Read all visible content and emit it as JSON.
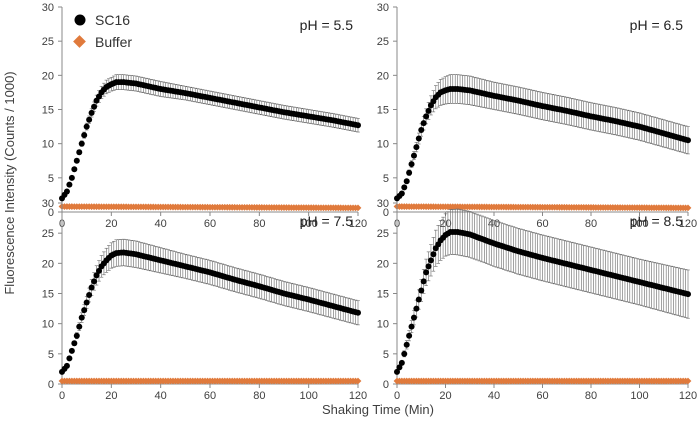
{
  "figure": {
    "xlabel": "Shaking Time (Min)",
    "ylabel": "Fluorescence Intensity (Counts / 1000)"
  },
  "legend": {
    "items": [
      {
        "label": "SC16",
        "marker": "circle",
        "color": "#000000"
      },
      {
        "label": "Buffer",
        "marker": "diamond",
        "color": "#E07A3C"
      }
    ]
  },
  "chart_data": [
    {
      "type": "scatter",
      "title": "pH = 5.5",
      "xlim": [
        0,
        120
      ],
      "ylim": [
        0,
        30
      ],
      "xticks": [
        "0",
        "20",
        "40",
        "60",
        "80",
        "100",
        "120"
      ],
      "yticks": [
        "0",
        "5",
        "10",
        "15",
        "20",
        "25",
        "30"
      ],
      "series": [
        {
          "name": "SC16",
          "color": "#000000",
          "x": [
            0,
            2,
            4,
            6,
            8,
            10,
            12,
            14,
            16,
            18,
            20,
            22,
            25,
            30,
            40,
            50,
            60,
            70,
            80,
            90,
            100,
            110,
            120
          ],
          "y": [
            2.0,
            3.0,
            5.0,
            7.5,
            10.0,
            12.5,
            14.5,
            16.3,
            17.5,
            18.3,
            18.7,
            19.0,
            19.0,
            18.8,
            18.0,
            17.4,
            16.7,
            16.0,
            15.3,
            14.6,
            14.0,
            13.4,
            12.7
          ],
          "err": [
            0,
            0,
            0.2,
            0.3,
            0.4,
            0.5,
            0.6,
            0.8,
            0.9,
            1.0,
            1.0,
            1.1,
            1.1,
            1.1,
            1.1,
            1.0,
            1.0,
            1.0,
            1.0,
            1.0,
            1.0,
            1.0,
            1.0
          ]
        },
        {
          "name": "Buffer",
          "color": "#E07A3C",
          "x": [
            0,
            120
          ],
          "y": [
            0.8,
            0.6
          ]
        }
      ]
    },
    {
      "type": "scatter",
      "title": "pH = 6.5",
      "xlim": [
        0,
        120
      ],
      "ylim": [
        0,
        30
      ],
      "xticks": [
        "0",
        "20",
        "40",
        "60",
        "80",
        "100",
        "120"
      ],
      "yticks": [
        "0",
        "5",
        "10",
        "15",
        "20",
        "25",
        "30"
      ],
      "series": [
        {
          "name": "SC16",
          "color": "#000000",
          "x": [
            0,
            2,
            4,
            6,
            8,
            10,
            12,
            14,
            16,
            18,
            20,
            22,
            25,
            30,
            40,
            50,
            60,
            70,
            80,
            90,
            100,
            110,
            120
          ],
          "y": [
            2.0,
            2.7,
            4.5,
            7.0,
            9.5,
            12.0,
            14.0,
            15.6,
            16.8,
            17.5,
            17.8,
            18.0,
            18.0,
            17.8,
            17.0,
            16.3,
            15.5,
            14.8,
            14.0,
            13.3,
            12.5,
            11.5,
            10.5
          ],
          "err": [
            0,
            0,
            0.3,
            0.5,
            0.7,
            0.9,
            1.1,
            1.4,
            1.7,
            1.9,
            2.0,
            2.1,
            2.1,
            2.1,
            2.0,
            2.0,
            2.0,
            2.0,
            2.0,
            2.0,
            2.0,
            2.0,
            2.0
          ]
        },
        {
          "name": "Buffer",
          "color": "#E07A3C",
          "x": [
            0,
            120
          ],
          "y": [
            0.8,
            0.6
          ]
        }
      ]
    },
    {
      "type": "scatter",
      "title": "pH = 7.5",
      "xlim": [
        0,
        120
      ],
      "ylim": [
        0,
        30
      ],
      "xticks": [
        "0",
        "20",
        "40",
        "60",
        "80",
        "100",
        "120"
      ],
      "yticks": [
        "0",
        "5",
        "10",
        "15",
        "20",
        "25",
        "30"
      ],
      "series": [
        {
          "name": "SC16",
          "color": "#000000",
          "x": [
            0,
            2,
            4,
            6,
            8,
            10,
            12,
            14,
            16,
            18,
            20,
            22,
            25,
            30,
            40,
            50,
            60,
            70,
            80,
            90,
            100,
            110,
            120
          ],
          "y": [
            2.0,
            3.0,
            5.5,
            8.0,
            11.0,
            13.5,
            16.0,
            18.0,
            19.5,
            20.5,
            21.3,
            21.7,
            21.8,
            21.5,
            20.5,
            19.5,
            18.5,
            17.3,
            16.2,
            15.0,
            14.0,
            12.9,
            11.8
          ],
          "err": [
            0,
            0,
            0.3,
            0.5,
            0.8,
            1.0,
            1.3,
            1.6,
            1.8,
            2.0,
            2.1,
            2.2,
            2.2,
            2.2,
            2.1,
            2.0,
            2.0,
            2.0,
            2.0,
            2.0,
            2.0,
            2.0,
            2.0
          ]
        },
        {
          "name": "Buffer",
          "color": "#E07A3C",
          "x": [
            0,
            120
          ],
          "y": [
            0.5,
            0.5
          ]
        }
      ]
    },
    {
      "type": "scatter",
      "title": "pH = 8.5",
      "xlim": [
        0,
        120
      ],
      "ylim": [
        0,
        30
      ],
      "xticks": [
        "0",
        "20",
        "40",
        "60",
        "80",
        "100",
        "120"
      ],
      "yticks": [
        "0",
        "5",
        "10",
        "15",
        "20",
        "25",
        "30"
      ],
      "series": [
        {
          "name": "SC16",
          "color": "#000000",
          "x": [
            0,
            2,
            4,
            6,
            8,
            10,
            12,
            14,
            16,
            18,
            20,
            22,
            25,
            30,
            40,
            50,
            60,
            70,
            80,
            90,
            100,
            110,
            120
          ],
          "y": [
            2.0,
            3.5,
            6.5,
            9.5,
            12.5,
            15.5,
            18.5,
            20.5,
            22.5,
            23.8,
            24.7,
            25.2,
            25.2,
            24.8,
            23.3,
            22.0,
            20.9,
            19.9,
            18.9,
            17.9,
            16.9,
            15.9,
            14.9
          ],
          "err": [
            0,
            0.3,
            0.7,
            1.0,
            1.4,
            1.8,
            2.2,
            2.6,
            3.0,
            3.3,
            3.5,
            3.7,
            3.8,
            3.8,
            3.8,
            3.8,
            3.8,
            3.8,
            3.8,
            3.8,
            3.8,
            3.9,
            4.0
          ]
        },
        {
          "name": "Buffer",
          "color": "#E07A3C",
          "x": [
            0,
            120
          ],
          "y": [
            0.5,
            0.5
          ]
        }
      ]
    }
  ]
}
